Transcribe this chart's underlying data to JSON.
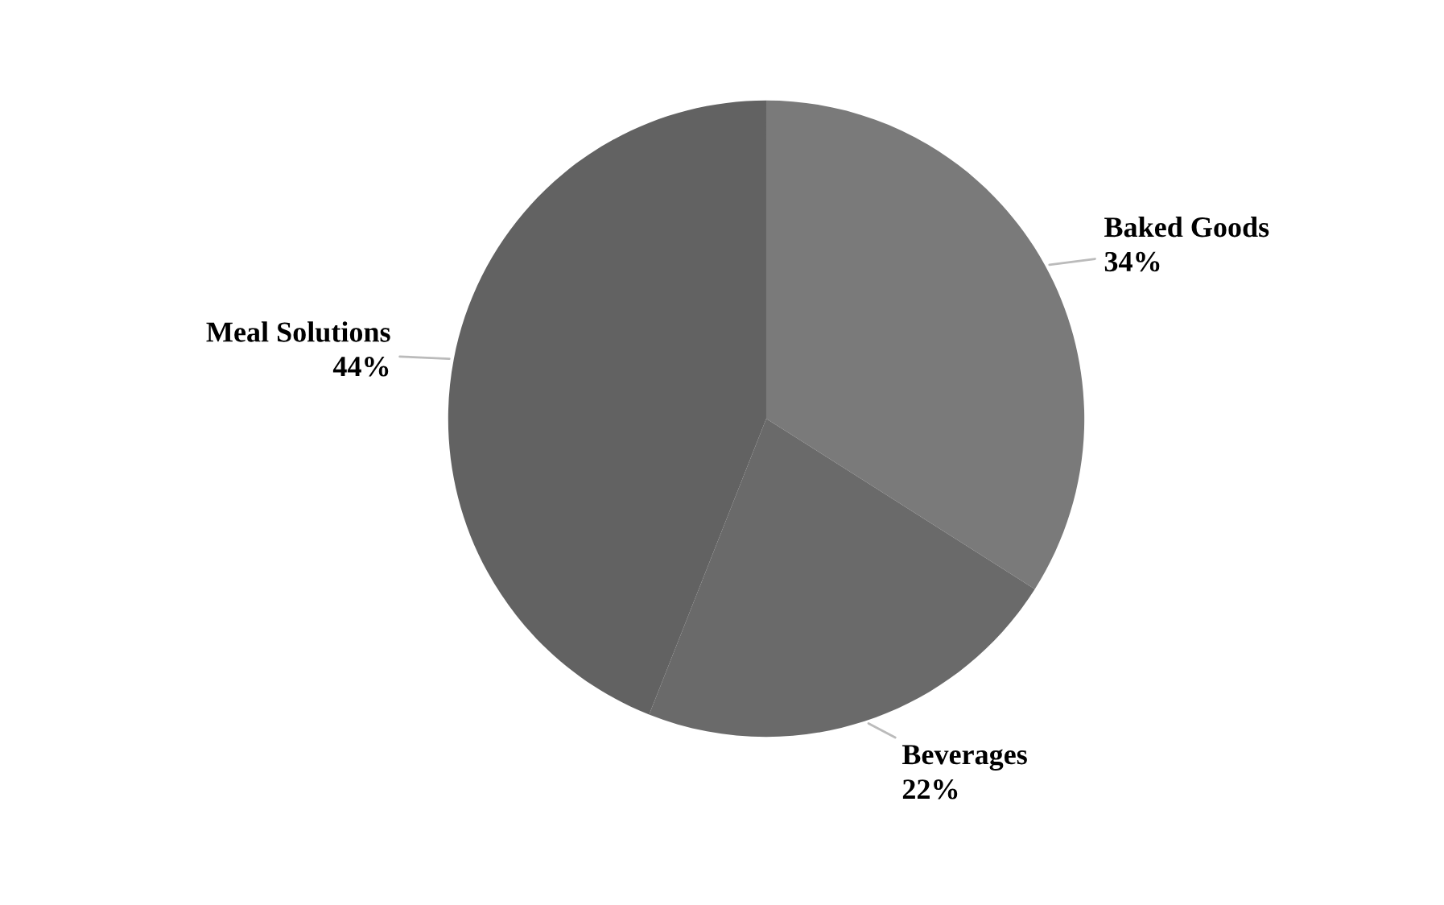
{
  "chart_data": {
    "type": "pie",
    "categories": [
      "Baked Goods",
      "Beverages",
      "Meal Solutions"
    ],
    "values": [
      34,
      22,
      44
    ],
    "value_labels": [
      "34%",
      "22%",
      "44%"
    ],
    "colors": [
      "#7a7a7a",
      "#6a6a6a",
      "#626262"
    ]
  }
}
